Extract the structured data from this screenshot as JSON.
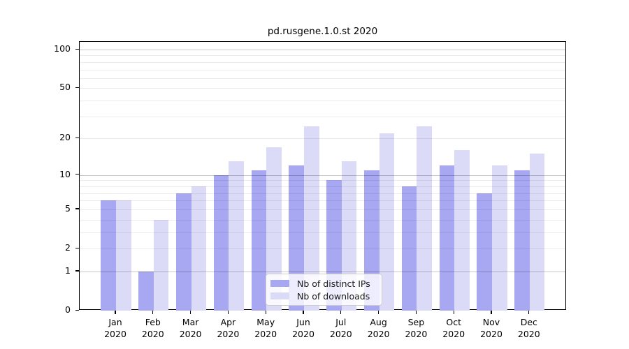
{
  "chart_data": {
    "type": "bar",
    "title": "pd.rusgene.1.0.st 2020",
    "categories": [
      "Jan",
      "Feb",
      "Mar",
      "Apr",
      "May",
      "Jun",
      "Jul",
      "Aug",
      "Sep",
      "Oct",
      "Nov",
      "Dec"
    ],
    "category_year": "2020",
    "series": [
      {
        "name": "Nb of distinct IPs",
        "color": "#a7a7f2",
        "values": [
          6,
          1,
          7,
          10,
          11,
          12,
          9,
          11,
          8,
          12,
          7,
          11
        ]
      },
      {
        "name": "Nb of downloads",
        "color": "#dbdbf8",
        "values": [
          6,
          4,
          8,
          13,
          17,
          25,
          13,
          22,
          25,
          16,
          12,
          15
        ]
      }
    ],
    "xlabel": "",
    "ylabel": "",
    "y_scale": "log10(value+1)",
    "ylim": [
      0,
      112
    ],
    "y_ticks": [
      0,
      1,
      2,
      5,
      10,
      20,
      50,
      100
    ],
    "y_minor_gridlines": [
      3,
      4,
      6,
      7,
      8,
      9,
      30,
      40,
      60,
      70,
      80,
      90
    ],
    "y_decade_gridlines": [
      1,
      10,
      100
    ],
    "grid": true,
    "legend_position": "inside-bottom-center"
  },
  "colors": {
    "background": "#ffffff",
    "frame": "#000000",
    "minor_grid": "#ececec",
    "decade_grid": "#c8c8c8",
    "bar_distinct_ips": "#a7a7f2",
    "bar_downloads": "#dbdbf8"
  }
}
